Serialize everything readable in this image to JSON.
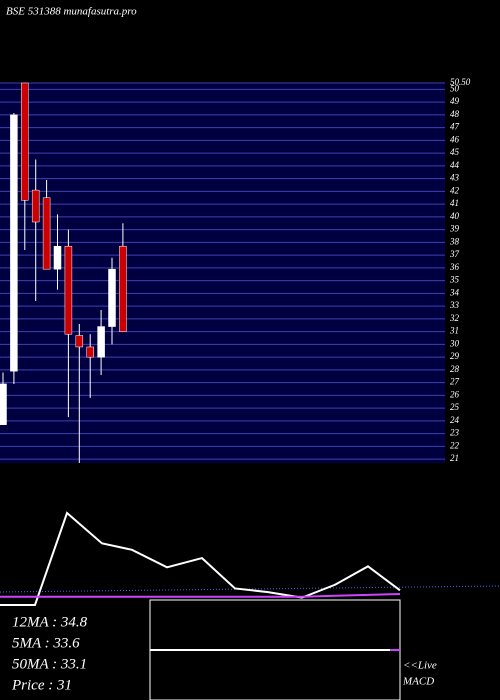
{
  "chart_data": [
    {
      "type": "candlestick",
      "title": "BSE 531388 munafasutra.pro",
      "open": [
        23.7,
        27.9,
        50.5,
        42.1,
        41.5,
        35.9,
        37.7,
        30.7,
        29.8,
        29.0,
        31.4,
        37.7
      ],
      "high": [
        27.8,
        48.15,
        50.5,
        44.5,
        42.9,
        40.2,
        39.0,
        31.6,
        30.8,
        32.7,
        36.8,
        39.5
      ],
      "low": [
        23.7,
        26.9,
        37.4,
        33.4,
        35.9,
        34.3,
        24.3,
        20.7,
        25.8,
        27.6,
        30.0,
        31.0
      ],
      "close": [
        26.9,
        48.0,
        41.3,
        39.6,
        35.9,
        37.7,
        30.8,
        29.8,
        29.0,
        31.4,
        35.9,
        31.0
      ],
      "up_color": "#ffffff",
      "down_color": "#cc0000",
      "ylim": [
        20.7,
        50.5
      ],
      "yticks": [
        21,
        22,
        23,
        24,
        25,
        26,
        27,
        28,
        29,
        30,
        31,
        32,
        33,
        34,
        35,
        36,
        37,
        38,
        39,
        40,
        41,
        42,
        43,
        44,
        45,
        46,
        47,
        48,
        49,
        50,
        {
          "value": 50.5,
          "label": "50.50"
        }
      ],
      "grid": true
    },
    {
      "type": "line",
      "x": [
        0,
        35,
        67,
        102,
        132,
        167,
        202,
        235,
        268,
        302,
        335,
        368,
        400
      ],
      "xlim": [
        0,
        500
      ],
      "ylim": [
        0,
        100
      ],
      "series": [
        {
          "color": "#ffffff",
          "values": [
            0,
            0,
            100,
            67,
            60,
            41,
            51,
            18,
            14,
            8,
            22,
            42,
            16
          ]
        },
        {
          "color": "#cc44ff",
          "values": [
            9,
            9,
            9,
            9,
            9,
            9,
            9,
            9,
            9,
            9,
            10,
            11,
            12
          ]
        }
      ],
      "annotations": [
        "12MA : 34.8",
        "5MA : 33.6",
        "50MA : 33.1",
        "Price  : 31",
        "<<Live",
        "MACD"
      ]
    }
  ]
}
